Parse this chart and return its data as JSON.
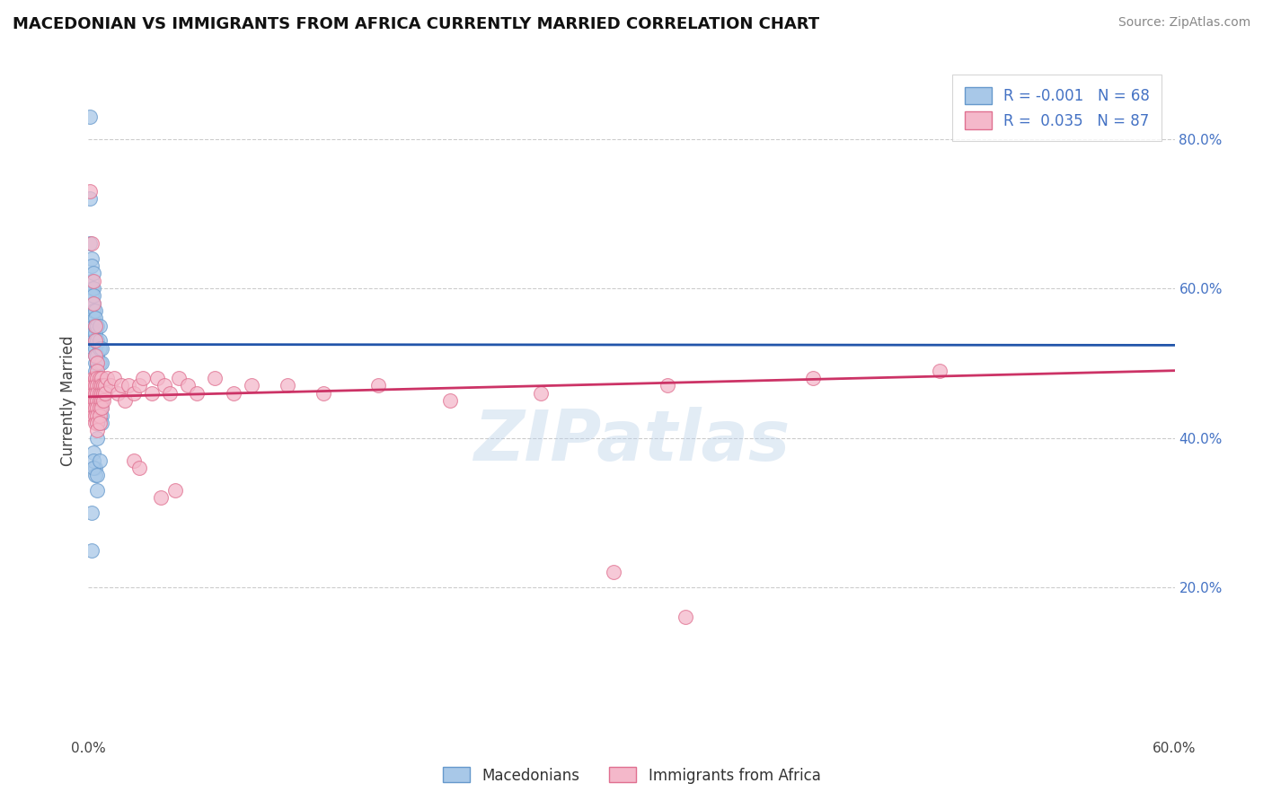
{
  "title": "MACEDONIAN VS IMMIGRANTS FROM AFRICA CURRENTLY MARRIED CORRELATION CHART",
  "source_text": "Source: ZipAtlas.com",
  "ylabel": "Currently Married",
  "x_min": 0.0,
  "x_max": 0.6,
  "y_min": 0.0,
  "y_max": 0.9,
  "y_ticks_right": [
    0.2,
    0.4,
    0.6,
    0.8
  ],
  "y_tick_labels_right": [
    "20.0%",
    "40.0%",
    "60.0%",
    "80.0%"
  ],
  "grid_color": "#cccccc",
  "background_color": "#ffffff",
  "blue_color": "#a8c8e8",
  "pink_color": "#f4b8ca",
  "blue_edge": "#6699cc",
  "pink_edge": "#e07090",
  "R_blue": -0.001,
  "N_blue": 68,
  "R_pink": 0.035,
  "N_pink": 87,
  "legend_label_blue": "Macedonians",
  "legend_label_pink": "Immigrants from Africa",
  "watermark": "ZIPatlas",
  "watermark_color": "#b8d0e8",
  "blue_trend_y_start": 0.525,
  "blue_trend_y_end": 0.524,
  "pink_trend_y_start": 0.455,
  "pink_trend_y_end": 0.49,
  "blue_scatter": [
    [
      0.001,
      0.83
    ],
    [
      0.001,
      0.72
    ],
    [
      0.001,
      0.66
    ],
    [
      0.002,
      0.64
    ],
    [
      0.002,
      0.63
    ],
    [
      0.002,
      0.6
    ],
    [
      0.002,
      0.58
    ],
    [
      0.002,
      0.61
    ],
    [
      0.002,
      0.59
    ],
    [
      0.003,
      0.62
    ],
    [
      0.003,
      0.6
    ],
    [
      0.003,
      0.58
    ],
    [
      0.003,
      0.56
    ],
    [
      0.003,
      0.57
    ],
    [
      0.003,
      0.59
    ],
    [
      0.003,
      0.55
    ],
    [
      0.003,
      0.54
    ],
    [
      0.003,
      0.53
    ],
    [
      0.003,
      0.52
    ],
    [
      0.004,
      0.57
    ],
    [
      0.004,
      0.55
    ],
    [
      0.004,
      0.53
    ],
    [
      0.004,
      0.56
    ],
    [
      0.004,
      0.54
    ],
    [
      0.004,
      0.52
    ],
    [
      0.004,
      0.5
    ],
    [
      0.004,
      0.51
    ],
    [
      0.004,
      0.49
    ],
    [
      0.004,
      0.48
    ],
    [
      0.004,
      0.47
    ],
    [
      0.005,
      0.55
    ],
    [
      0.005,
      0.53
    ],
    [
      0.005,
      0.51
    ],
    [
      0.005,
      0.5
    ],
    [
      0.005,
      0.48
    ],
    [
      0.005,
      0.46
    ],
    [
      0.005,
      0.47
    ],
    [
      0.005,
      0.45
    ],
    [
      0.005,
      0.44
    ],
    [
      0.006,
      0.55
    ],
    [
      0.006,
      0.53
    ],
    [
      0.006,
      0.52
    ],
    [
      0.006,
      0.5
    ],
    [
      0.006,
      0.48
    ],
    [
      0.006,
      0.46
    ],
    [
      0.006,
      0.47
    ],
    [
      0.006,
      0.45
    ],
    [
      0.006,
      0.44
    ],
    [
      0.007,
      0.52
    ],
    [
      0.007,
      0.5
    ],
    [
      0.007,
      0.48
    ],
    [
      0.007,
      0.46
    ],
    [
      0.007,
      0.45
    ],
    [
      0.007,
      0.44
    ],
    [
      0.007,
      0.43
    ],
    [
      0.007,
      0.42
    ],
    [
      0.003,
      0.38
    ],
    [
      0.004,
      0.36
    ],
    [
      0.004,
      0.35
    ],
    [
      0.005,
      0.33
    ],
    [
      0.002,
      0.3
    ],
    [
      0.002,
      0.25
    ],
    [
      0.003,
      0.37
    ],
    [
      0.003,
      0.36
    ],
    [
      0.005,
      0.35
    ],
    [
      0.006,
      0.37
    ],
    [
      0.005,
      0.4
    ],
    [
      0.005,
      0.42
    ]
  ],
  "pink_scatter": [
    [
      0.001,
      0.73
    ],
    [
      0.002,
      0.66
    ],
    [
      0.003,
      0.61
    ],
    [
      0.003,
      0.58
    ],
    [
      0.004,
      0.55
    ],
    [
      0.004,
      0.53
    ],
    [
      0.004,
      0.51
    ],
    [
      0.005,
      0.5
    ],
    [
      0.001,
      0.47
    ],
    [
      0.001,
      0.45
    ],
    [
      0.002,
      0.47
    ],
    [
      0.002,
      0.46
    ],
    [
      0.002,
      0.45
    ],
    [
      0.002,
      0.44
    ],
    [
      0.003,
      0.48
    ],
    [
      0.003,
      0.47
    ],
    [
      0.003,
      0.46
    ],
    [
      0.003,
      0.45
    ],
    [
      0.003,
      0.44
    ],
    [
      0.003,
      0.43
    ],
    [
      0.004,
      0.48
    ],
    [
      0.004,
      0.47
    ],
    [
      0.004,
      0.46
    ],
    [
      0.004,
      0.45
    ],
    [
      0.004,
      0.44
    ],
    [
      0.004,
      0.43
    ],
    [
      0.004,
      0.42
    ],
    [
      0.005,
      0.49
    ],
    [
      0.005,
      0.48
    ],
    [
      0.005,
      0.47
    ],
    [
      0.005,
      0.46
    ],
    [
      0.005,
      0.45
    ],
    [
      0.005,
      0.44
    ],
    [
      0.005,
      0.43
    ],
    [
      0.005,
      0.42
    ],
    [
      0.005,
      0.41
    ],
    [
      0.006,
      0.48
    ],
    [
      0.006,
      0.47
    ],
    [
      0.006,
      0.46
    ],
    [
      0.006,
      0.45
    ],
    [
      0.006,
      0.44
    ],
    [
      0.006,
      0.43
    ],
    [
      0.006,
      0.42
    ],
    [
      0.007,
      0.48
    ],
    [
      0.007,
      0.47
    ],
    [
      0.007,
      0.46
    ],
    [
      0.007,
      0.45
    ],
    [
      0.007,
      0.44
    ],
    [
      0.008,
      0.47
    ],
    [
      0.008,
      0.46
    ],
    [
      0.008,
      0.45
    ],
    [
      0.009,
      0.47
    ],
    [
      0.009,
      0.46
    ],
    [
      0.01,
      0.48
    ],
    [
      0.012,
      0.47
    ],
    [
      0.014,
      0.48
    ],
    [
      0.016,
      0.46
    ],
    [
      0.018,
      0.47
    ],
    [
      0.02,
      0.45
    ],
    [
      0.022,
      0.47
    ],
    [
      0.025,
      0.46
    ],
    [
      0.028,
      0.47
    ],
    [
      0.03,
      0.48
    ],
    [
      0.035,
      0.46
    ],
    [
      0.038,
      0.48
    ],
    [
      0.042,
      0.47
    ],
    [
      0.045,
      0.46
    ],
    [
      0.05,
      0.48
    ],
    [
      0.055,
      0.47
    ],
    [
      0.06,
      0.46
    ],
    [
      0.07,
      0.48
    ],
    [
      0.08,
      0.46
    ],
    [
      0.09,
      0.47
    ],
    [
      0.11,
      0.47
    ],
    [
      0.13,
      0.46
    ],
    [
      0.16,
      0.47
    ],
    [
      0.2,
      0.45
    ],
    [
      0.25,
      0.46
    ],
    [
      0.32,
      0.47
    ],
    [
      0.4,
      0.48
    ],
    [
      0.47,
      0.49
    ],
    [
      0.025,
      0.37
    ],
    [
      0.028,
      0.36
    ],
    [
      0.04,
      0.32
    ],
    [
      0.048,
      0.33
    ],
    [
      0.29,
      0.22
    ],
    [
      0.33,
      0.16
    ]
  ]
}
